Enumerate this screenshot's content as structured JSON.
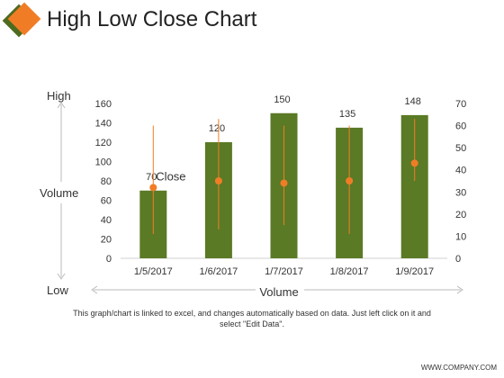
{
  "slide": {
    "title": "High Low Close Chart",
    "icon": "diamond-icon",
    "side_high": "High",
    "side_volume": "Volume",
    "side_low": "Low",
    "x_label": "Volume",
    "footnote": "This graph/chart is linked to excel, and changes automatically based on data. Just left click on it and select \"Edit Data\".",
    "website": "WWW.COMPANY.COM"
  },
  "colors": {
    "bar": "#5a7a25",
    "accent": "#f07d26",
    "icon_dark": "#4d6b1f"
  },
  "chart_data": {
    "type": "bar",
    "categories": [
      "1/5/2017",
      "1/6/2017",
      "1/7/2017",
      "1/8/2017",
      "1/9/2017"
    ],
    "series": [
      {
        "kind": "bar",
        "axis": "left",
        "values": [
          70,
          120,
          150,
          135,
          148
        ],
        "data_labels": [
          "70",
          "120",
          "150",
          "135",
          "148"
        ]
      },
      {
        "kind": "high-low-close",
        "axis": "right",
        "high": [
          60,
          63,
          60,
          60,
          63
        ],
        "low": [
          11,
          13,
          15,
          11,
          35
        ],
        "close": [
          32,
          35,
          34,
          35,
          43
        ]
      }
    ],
    "yleft": {
      "min": 0,
      "max": 160,
      "ticks": [
        0,
        20,
        40,
        60,
        80,
        100,
        120,
        140,
        160
      ]
    },
    "yright": {
      "min": 0,
      "max": 70,
      "ticks": [
        0,
        10,
        20,
        30,
        40,
        50,
        60,
        70
      ]
    },
    "annotation": {
      "text": "Close",
      "category": 0
    },
    "grid": false,
    "legend": "none"
  }
}
